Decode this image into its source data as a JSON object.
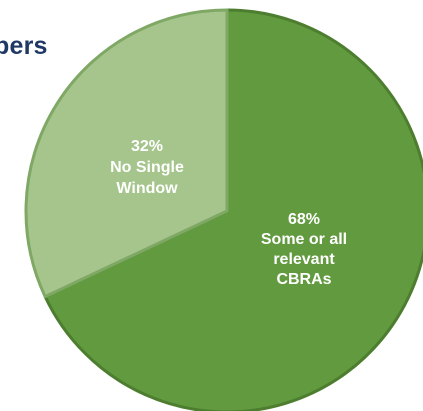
{
  "header": {
    "title_fragment": "bers"
  },
  "chart_data": {
    "type": "pie",
    "title": "",
    "slices": [
      {
        "value": 68,
        "percent_label": "68%",
        "label_lines": [
          "Some or all",
          "relevant",
          "CBRAs"
        ],
        "color": "#629a3f",
        "edge_color": "#4d7d2f"
      },
      {
        "value": 32,
        "percent_label": "32%",
        "label_lines": [
          "No Single",
          "Window"
        ],
        "color": "#a5c58c",
        "edge_color": "#7fa865"
      }
    ],
    "start_angle_deg": 0,
    "direction": "clockwise",
    "legend": "none"
  }
}
